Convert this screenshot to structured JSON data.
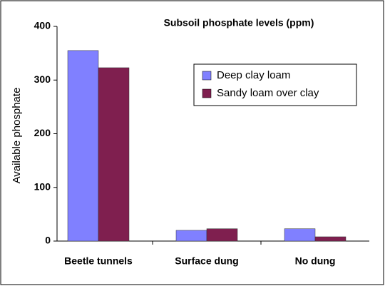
{
  "chart_data": {
    "type": "bar",
    "title": "Subsoil phosphate levels (ppm)",
    "y_label": "Available phosphate",
    "categories": [
      "Beetle tunnels",
      "Surface dung",
      "No dung"
    ],
    "series": [
      {
        "name": "Deep clay loam",
        "color": "#8080ff",
        "values": [
          355,
          20,
          23
        ]
      },
      {
        "name": "Sandy loam over clay",
        "color": "#7f1f4f",
        "values": [
          323,
          23,
          8
        ]
      }
    ],
    "ylim": [
      0,
      400
    ],
    "yticks": [
      0,
      100,
      200,
      300,
      400
    ],
    "legend": "upper right"
  }
}
